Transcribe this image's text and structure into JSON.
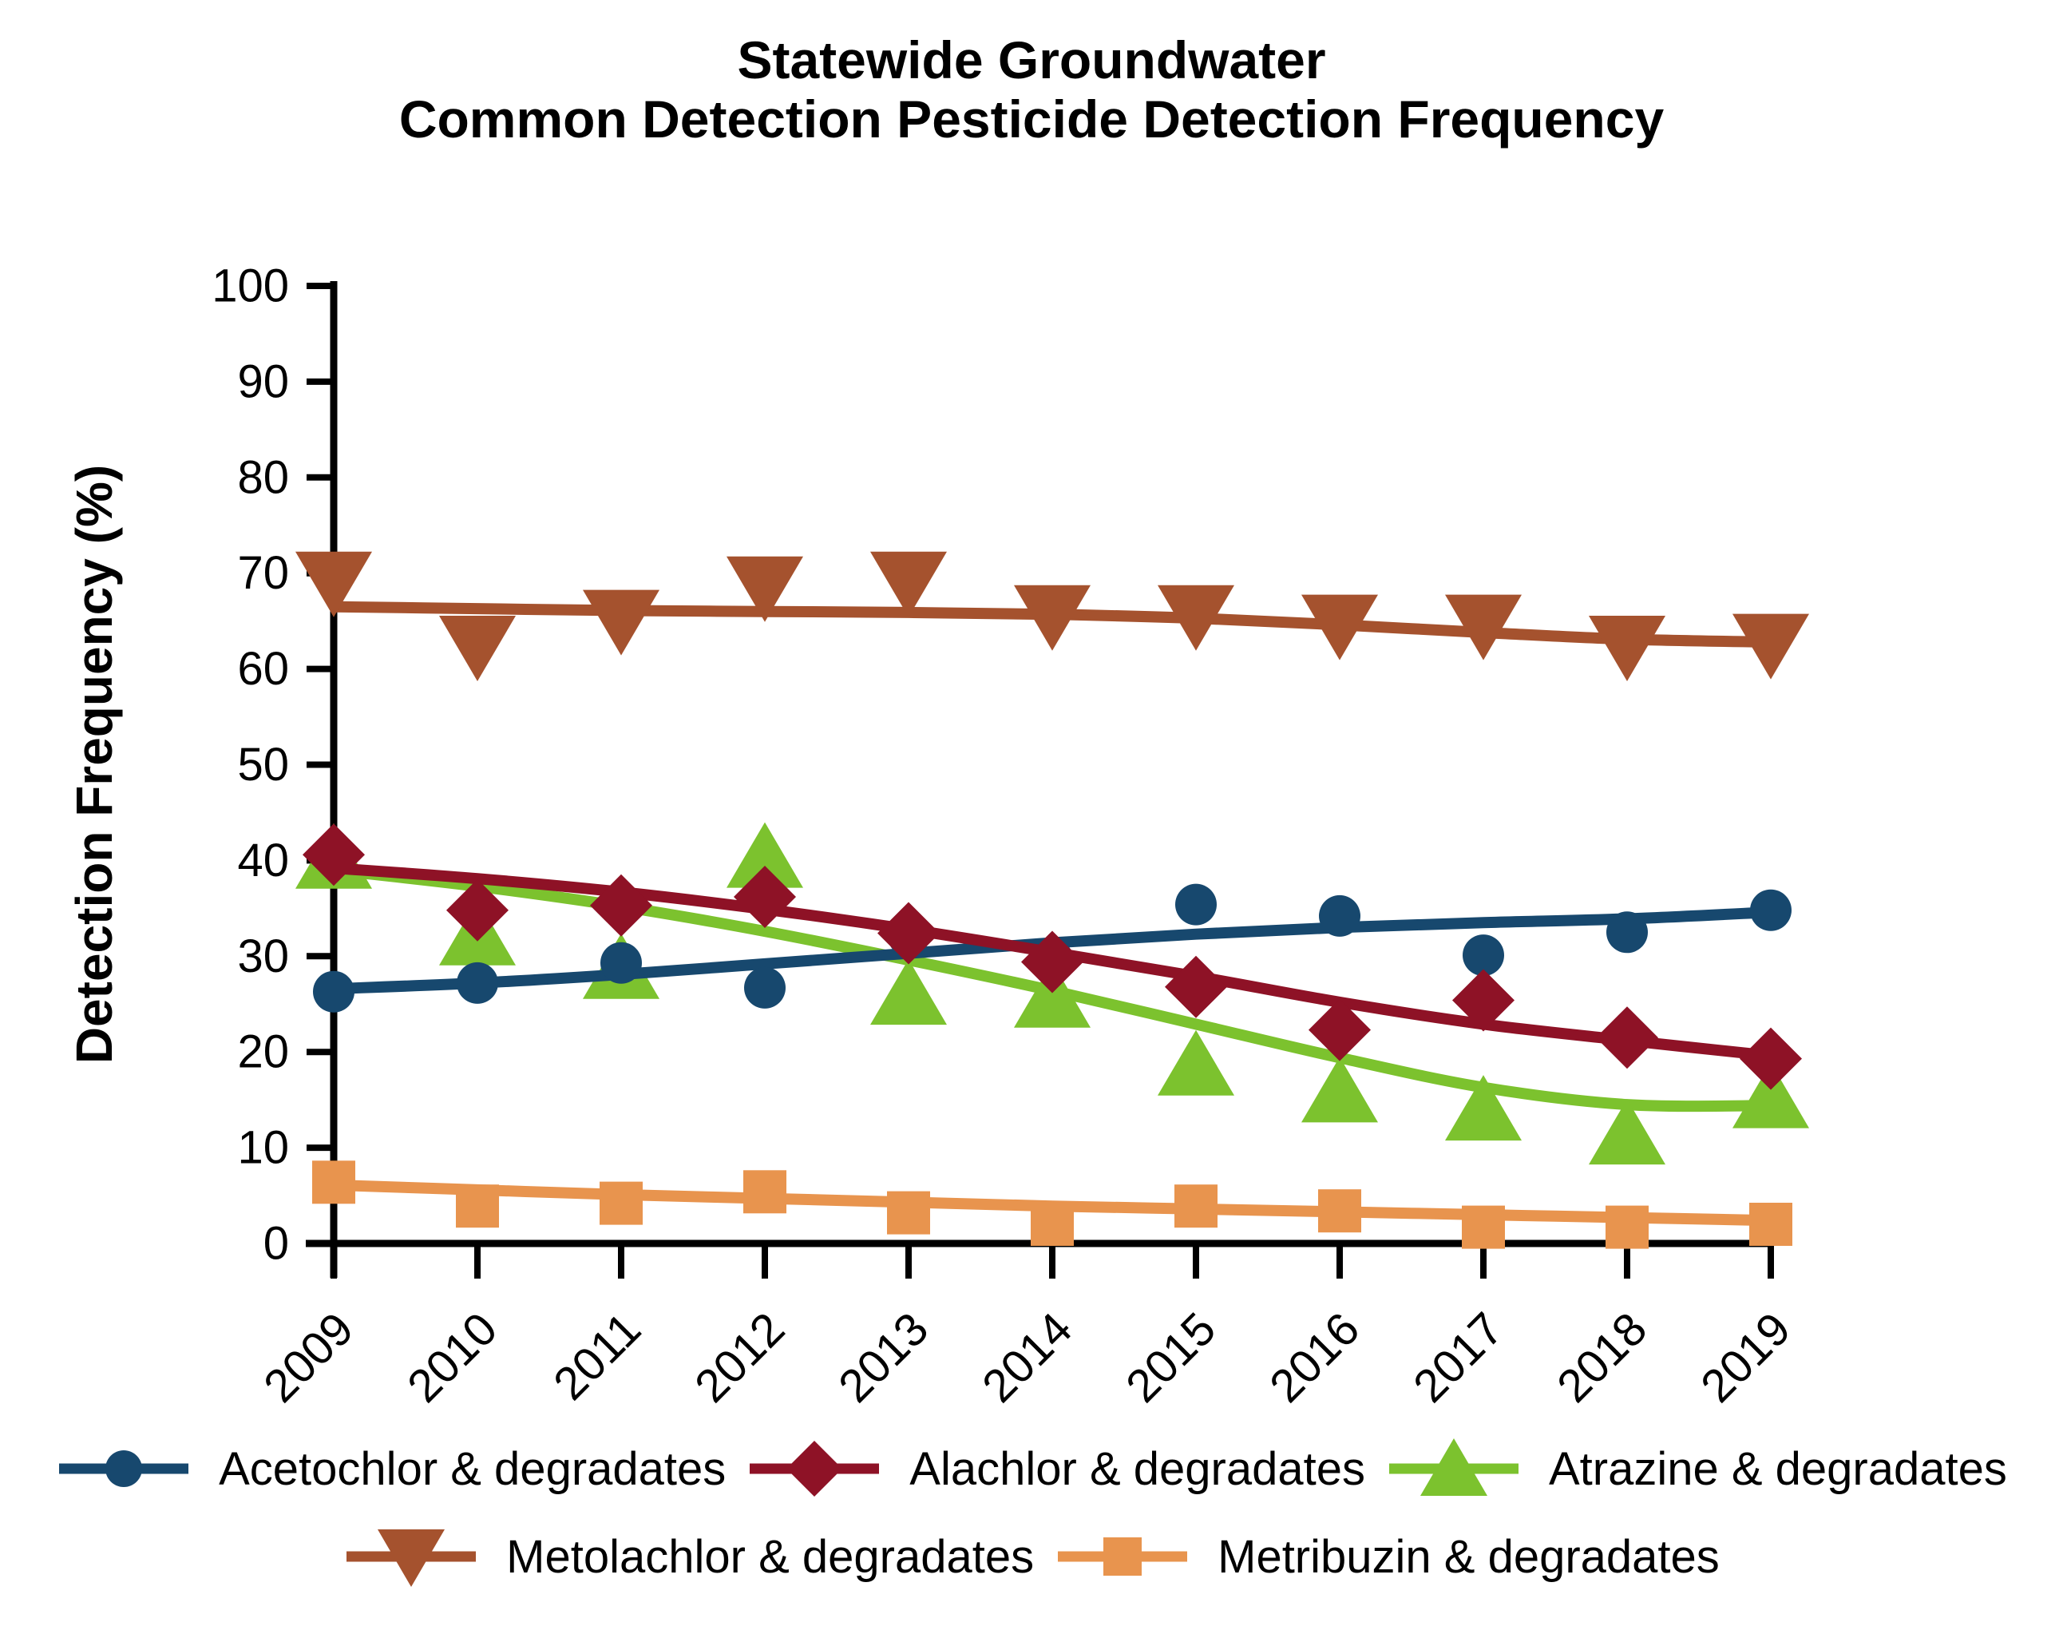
{
  "title": {
    "line1": "Statewide Groundwater",
    "line2": "Common Detection Pesticide Detection Frequency"
  },
  "y_axis": {
    "label": "Detection Frequency (%)",
    "ticks": [
      0,
      10,
      20,
      30,
      40,
      50,
      60,
      70,
      80,
      90,
      100
    ],
    "min": 0,
    "max": 100
  },
  "x_axis": {
    "years": [
      "2009",
      "2010",
      "2011",
      "2012",
      "2013",
      "2014",
      "2015",
      "2016",
      "2017",
      "2018",
      "2019"
    ]
  },
  "chart_data": {
    "type": "scatter",
    "title": "Statewide Groundwater Common Detection Pesticide Detection Frequency",
    "xlabel": "",
    "ylabel": "Detection Frequency (%)",
    "ylim": [
      0,
      100
    ],
    "x": [
      2009,
      2010,
      2011,
      2012,
      2013,
      2014,
      2015,
      2016,
      2017,
      2018,
      2019
    ],
    "grid": false,
    "legend_position": "bottom",
    "series": [
      {
        "name": "Acetochlor & degradates",
        "color": "#17486E",
        "marker": "circle",
        "values": [
          26.3,
          27.2,
          29.3,
          26.7,
          32.1,
          29.7,
          35.4,
          34.2,
          30.1,
          32.5,
          34.8
        ],
        "trend": [
          26.6,
          27.2,
          28.1,
          29.2,
          30.3,
          31.4,
          32.3,
          33.0,
          33.5,
          33.9,
          34.6
        ]
      },
      {
        "name": "Alachlor & degradates",
        "color": "#8E1226",
        "marker": "diamond",
        "values": [
          40.6,
          34.8,
          35.3,
          36.2,
          32.4,
          29.4,
          26.8,
          22.3,
          25.4,
          21.5,
          19.3
        ],
        "trend": [
          39.2,
          38.1,
          36.7,
          34.9,
          32.8,
          30.4,
          27.9,
          25.2,
          22.9,
          21.2,
          19.6
        ]
      },
      {
        "name": "Atrazine & degradates",
        "color": "#7CC22E",
        "marker": "triangle-up",
        "values": [
          40.3,
          32.3,
          28.8,
          40.4,
          26.1,
          25.8,
          18.7,
          15.9,
          14.0,
          11.5,
          15.3
        ],
        "trend": [
          39.0,
          37.3,
          35.2,
          32.6,
          29.6,
          26.4,
          22.9,
          19.4,
          16.3,
          14.5,
          14.4
        ]
      },
      {
        "name": "Metolachlor & degradates",
        "color": "#A5522E",
        "marker": "triangle-down",
        "values": [
          69.0,
          62.3,
          65.0,
          68.5,
          69.0,
          65.5,
          65.5,
          64.5,
          64.5,
          62.3,
          62.5
        ],
        "trend": [
          66.5,
          66.3,
          66.1,
          66.0,
          65.9,
          65.7,
          65.3,
          64.6,
          63.8,
          63.1,
          62.8
        ]
      },
      {
        "name": "Metribuzin & degradates",
        "color": "#E8944E",
        "marker": "square",
        "values": [
          6.4,
          3.9,
          4.2,
          5.4,
          3.2,
          2.0,
          3.9,
          3.4,
          1.7,
          1.7,
          2.0
        ],
        "trend": [
          6.1,
          5.6,
          5.1,
          4.7,
          4.3,
          3.9,
          3.6,
          3.3,
          3.0,
          2.7,
          2.4
        ]
      }
    ]
  },
  "legend": {
    "row1_series": [
      0,
      1,
      2
    ],
    "row2_series": [
      3,
      4
    ]
  }
}
